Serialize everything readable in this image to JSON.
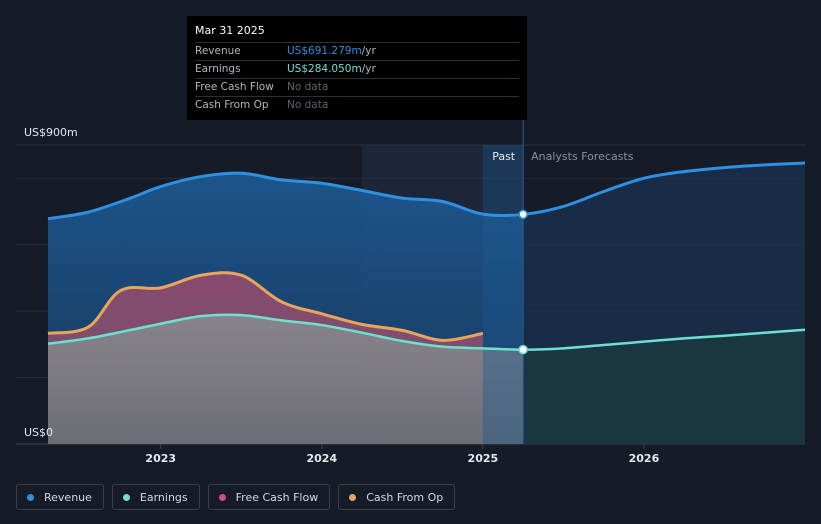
{
  "chart_data": {
    "type": "area",
    "title": "",
    "ylabel": "",
    "y_top_label": "US$900m",
    "y_bottom_label": "US$0",
    "ylim": [
      0,
      900
    ],
    "xlim": [
      2022.3,
      2027.0
    ],
    "x_ticks": [
      {
        "value": 2023,
        "label": "2023"
      },
      {
        "value": 2024,
        "label": "2024"
      },
      {
        "value": 2025,
        "label": "2025"
      },
      {
        "value": 2026,
        "label": "2026"
      }
    ],
    "past_label": "Past",
    "forecast_label": "Analysts Forecasts",
    "divider_x": 2025.25,
    "series": [
      {
        "name": "Revenue",
        "color": "#2f8fe0",
        "x": [
          2022.3,
          2022.55,
          2022.8,
          2023.0,
          2023.25,
          2023.5,
          2023.75,
          2024.0,
          2024.25,
          2024.5,
          2024.75,
          2025.0,
          2025.25,
          2025.5,
          2025.75,
          2026.0,
          2026.25,
          2026.5,
          2026.75,
          2027.0
        ],
        "values": [
          678,
          698,
          738,
          775,
          805,
          815,
          795,
          785,
          763,
          740,
          730,
          692,
          691,
          715,
          760,
          800,
          820,
          832,
          840,
          846
        ]
      },
      {
        "name": "Earnings",
        "color": "#6ee0d0",
        "x": [
          2022.3,
          2022.55,
          2022.8,
          2023.0,
          2023.25,
          2023.5,
          2023.75,
          2024.0,
          2024.25,
          2024.5,
          2024.75,
          2025.0,
          2025.25,
          2025.5,
          2025.75,
          2026.0,
          2026.25,
          2026.5,
          2026.75,
          2027.0
        ],
        "values": [
          302,
          318,
          342,
          362,
          385,
          388,
          372,
          358,
          335,
          310,
          293,
          288,
          284,
          288,
          298,
          308,
          318,
          326,
          335,
          344
        ]
      },
      {
        "name": "Free Cash Flow",
        "color": "#c94f8a",
        "x": [
          2022.3,
          2022.55,
          2022.75,
          2023.0,
          2023.25,
          2023.5,
          2023.75,
          2024.0,
          2024.25,
          2024.5,
          2024.75,
          2025.0
        ],
        "values": [
          333,
          352,
          462,
          470,
          508,
          508,
          428,
          392,
          360,
          342,
          312,
          333
        ]
      },
      {
        "name": "Cash From Op",
        "color": "#e8a55c",
        "x": [
          2022.3,
          2022.55,
          2022.75,
          2023.0,
          2023.25,
          2023.5,
          2023.75,
          2024.0,
          2024.25,
          2024.5,
          2024.75,
          2025.0
        ],
        "values": [
          333,
          352,
          462,
          470,
          508,
          508,
          428,
          392,
          360,
          342,
          312,
          333
        ]
      }
    ],
    "markers": [
      {
        "series": "Revenue",
        "x": 2025.25,
        "value": 691.279
      },
      {
        "series": "Earnings",
        "x": 2025.25,
        "value": 284.05
      }
    ]
  },
  "tooltip": {
    "date": "Mar 31 2025",
    "rows": [
      {
        "label": "Revenue",
        "value": "US$691.279m",
        "unit": " /yr",
        "color": "#2f8fe0"
      },
      {
        "label": "Earnings",
        "value": "US$284.050m",
        "unit": " /yr",
        "color": "#6ee0d0"
      },
      {
        "label": "Free Cash Flow",
        "value": "No data",
        "unit": "",
        "color": "#5d636d"
      },
      {
        "label": "Cash From Op",
        "value": "No data",
        "unit": "",
        "color": "#5d636d"
      }
    ]
  },
  "legend": [
    {
      "label": "Revenue",
      "color": "#2f8fe0"
    },
    {
      "label": "Earnings",
      "color": "#6ee0d0"
    },
    {
      "label": "Free Cash Flow",
      "color": "#c94f8a"
    },
    {
      "label": "Cash From Op",
      "color": "#e8a55c"
    }
  ]
}
